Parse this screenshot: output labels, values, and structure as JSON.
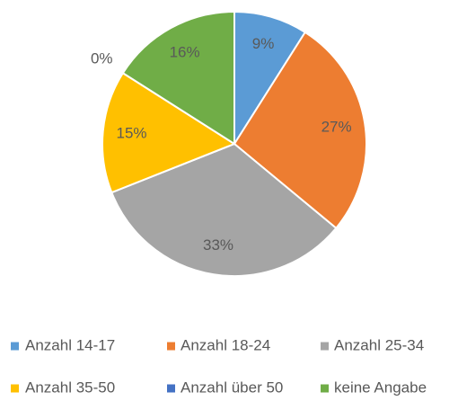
{
  "chart_data": {
    "type": "pie",
    "categories": [
      "Anzahl 14-17",
      "Anzahl 18-24",
      "Anzahl 25-34",
      "Anzahl 35-50",
      "Anzahl über 50",
      "keine Angabe"
    ],
    "values": [
      9,
      27,
      33,
      15,
      0,
      16
    ],
    "value_labels": [
      "9%",
      "27%",
      "33%",
      "15%",
      "0%",
      "16%"
    ],
    "colors": [
      "#5b9bd5",
      "#ed7d31",
      "#a5a5a5",
      "#ffc000",
      "#4472c4",
      "#70ad47"
    ],
    "legend": "bottom"
  }
}
